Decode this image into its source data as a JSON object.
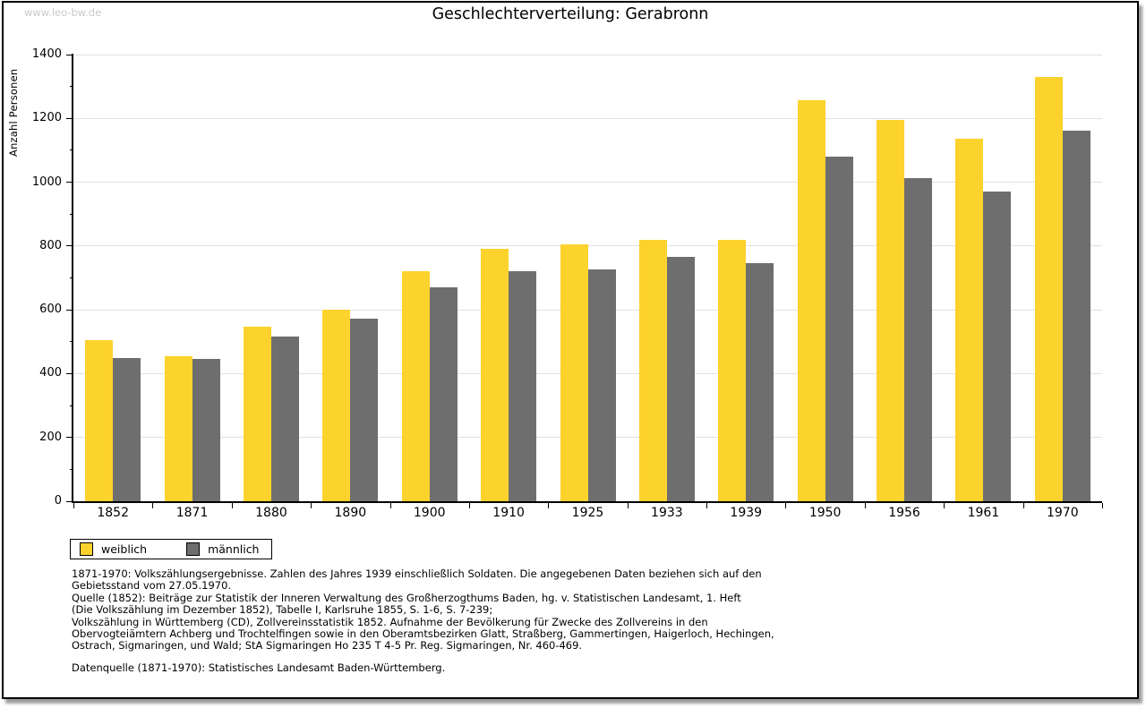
{
  "watermark": "www.leo-bw.de",
  "chart_data": {
    "type": "bar",
    "title": "Geschlechterverteilung: Gerabronn",
    "ylabel": "Anzahl Personen",
    "xlabel": "",
    "categories": [
      "1852",
      "1871",
      "1880",
      "1890",
      "1900",
      "1910",
      "1925",
      "1933",
      "1939",
      "1950",
      "1956",
      "1961",
      "1970"
    ],
    "series": [
      {
        "name": "weiblich",
        "color": "#FCD22D",
        "values": [
          505,
          455,
          547,
          600,
          722,
          790,
          806,
          820,
          820,
          1257,
          1194,
          1137,
          1330
        ]
      },
      {
        "name": "männlich",
        "color": "#6E6E6E",
        "values": [
          448,
          447,
          517,
          572,
          671,
          722,
          728,
          766,
          745,
          1080,
          1013,
          970,
          1162
        ]
      }
    ],
    "ylim": [
      0,
      1400
    ],
    "ytick_major": 200,
    "ytick_minor": 100,
    "grid": "horizontal-major",
    "legend_position": "bottom-left",
    "colors": {
      "axis": "#000000",
      "gridline": "#e0e0e0",
      "background": "#ffffff"
    }
  },
  "footnotes": {
    "lines": [
      "1871-1970: Volkszählungsergebnisse. Zahlen des Jahres 1939 einschließlich Soldaten. Die angegebenen Daten beziehen sich auf den",
      "Gebietsstand vom 27.05.1970.",
      "Quelle (1852): Beiträge zur Statistik der Inneren Verwaltung des Großherzogthums Baden, hg. v. Statistischen Landesamt, 1. Heft",
      "(Die Volkszählung im Dezember 1852), Tabelle I, Karlsruhe 1855, S. 1-6, S. 7-239;",
      "Volkszählung in Württemberg (CD), Zollvereinsstatistik 1852. Aufnahme der Bevölkerung für Zwecke des Zollvereins in den",
      "Obervogteiämtern Achberg und Trochtelfingen sowie in den Oberamtsbezirken Glatt, Straßberg, Gammertingen, Haigerloch, Hechingen,",
      "Ostrach, Sigmaringen, und Wald; StA Sigmaringen Ho 235 T 4-5 Pr. Reg. Sigmaringen, Nr. 460-469."
    ],
    "datasource": "Datenquelle (1871-1970): Statistisches Landesamt Baden-Württemberg."
  }
}
